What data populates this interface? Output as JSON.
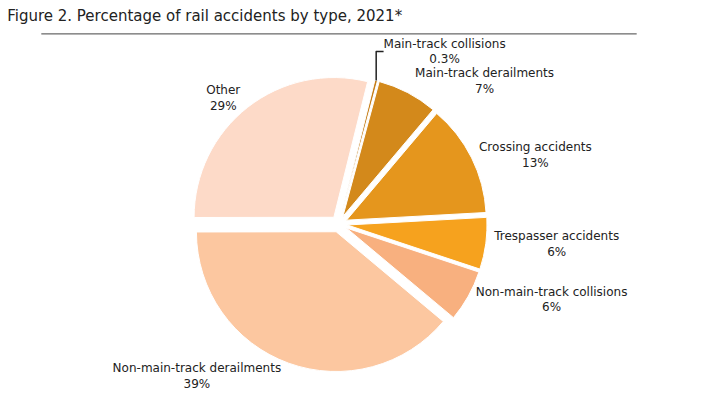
{
  "chart_data": {
    "type": "pie",
    "title": "Figure 2. Percentage of rail accidents by type, 2021*",
    "categories": [
      "Main-track collisions",
      "Main-track derailments",
      "Crossing accidents",
      "Trespasser accidents",
      "Non-main-track collisions",
      "Non-main-track derailments",
      "Other"
    ],
    "values": [
      0.3,
      7,
      13,
      6,
      6,
      39,
      29
    ],
    "value_labels": [
      "0.3%",
      "7%",
      "13%",
      "6%",
      "6%",
      "39%",
      "29%"
    ],
    "colors": [
      "#c57d17",
      "#d3891b",
      "#e5961d",
      "#f6a21e",
      "#f8b07f",
      "#fcc7a0",
      "#fddac8"
    ],
    "data_labels": true
  }
}
